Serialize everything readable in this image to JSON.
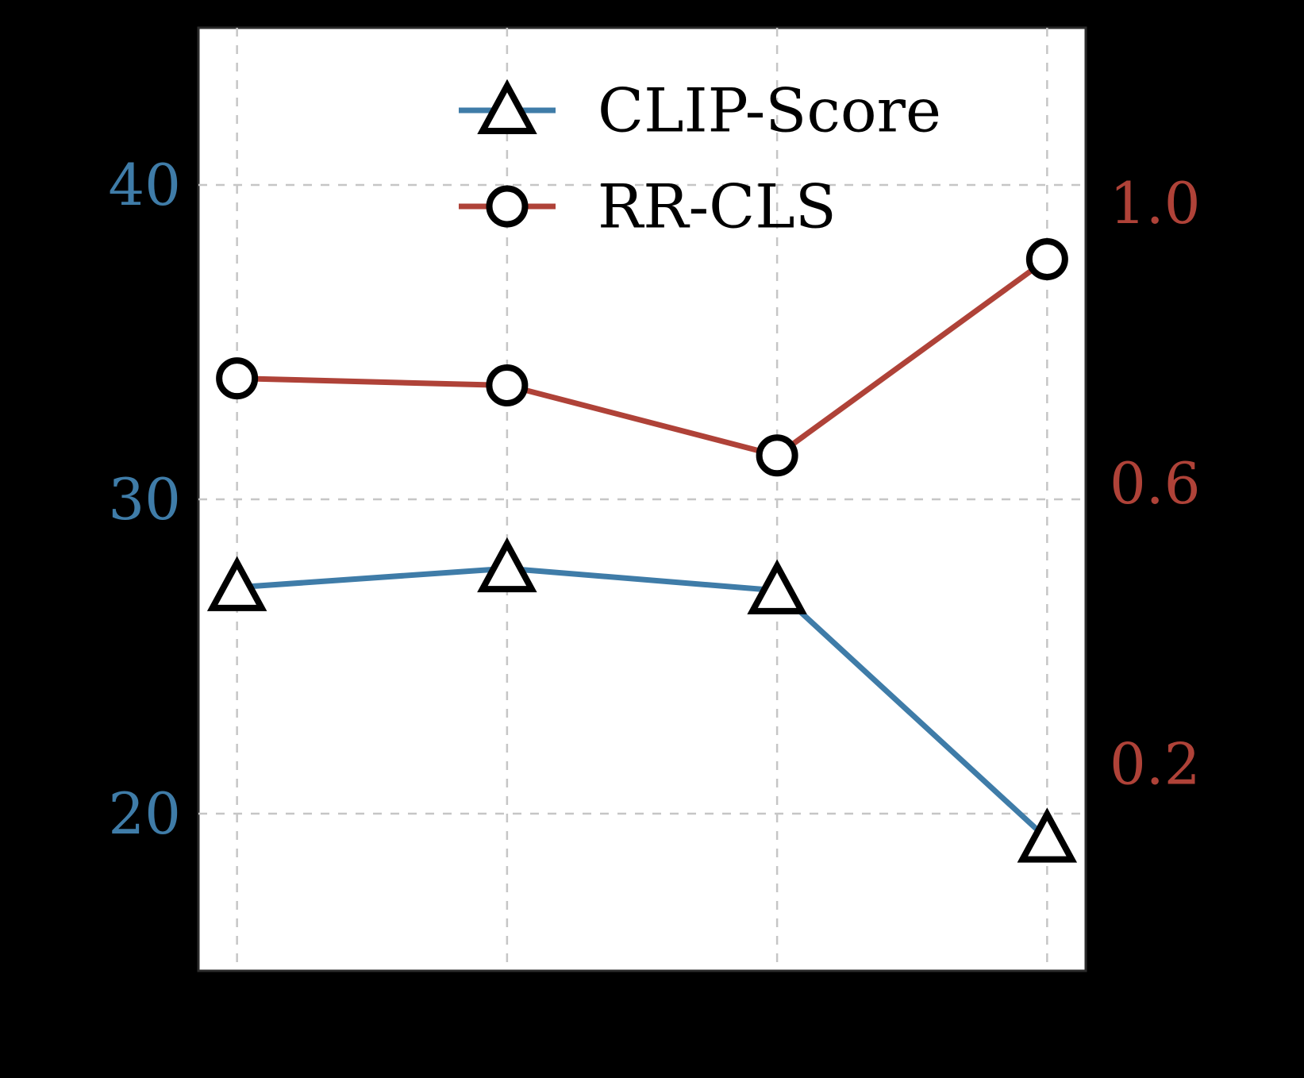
{
  "figure": {
    "background_color": "#000000",
    "plot_background_color": "#ffffff",
    "spine_color": "#2b2b2b",
    "grid_color": "#c6c6c6",
    "marker_edge_color": "#000000",
    "marker_fill_color": "#ffffff",
    "title": "",
    "x_tick_labels_visible": false
  },
  "chart_data": {
    "type": "line",
    "x": [
      1,
      2,
      3,
      4
    ],
    "xlim": [
      0.857,
      4.143
    ],
    "grid": true,
    "series": [
      {
        "name": "CLIP-Score",
        "axis": "left",
        "color": "#3F7CA8",
        "marker": "triangle",
        "values": [
          27.2,
          27.8,
          27.1,
          19.2
        ]
      },
      {
        "name": "RR-CLS",
        "axis": "right",
        "color": "#AF4238",
        "marker": "circle",
        "values": [
          0.75,
          0.74,
          0.64,
          0.92
        ]
      }
    ],
    "left_axis": {
      "tick_labels": [
        "40",
        "30",
        "20"
      ],
      "tick_values": [
        40,
        30,
        20
      ],
      "color": "#3F7CA8",
      "ylim": [
        15,
        45
      ]
    },
    "right_axis": {
      "tick_labels": [
        "1.0",
        "0.6",
        "0.2"
      ],
      "tick_values": [
        1.0,
        0.6,
        0.2
      ],
      "color": "#AF4238",
      "ylim": [
        -0.095,
        1.25
      ]
    },
    "legend": {
      "position": "upper center",
      "entries": [
        {
          "label": "CLIP-Score",
          "marker": "triangle",
          "line_color": "#3F7CA8"
        },
        {
          "label": "RR-CLS",
          "marker": "circle",
          "line_color": "#AF4238"
        }
      ]
    }
  }
}
